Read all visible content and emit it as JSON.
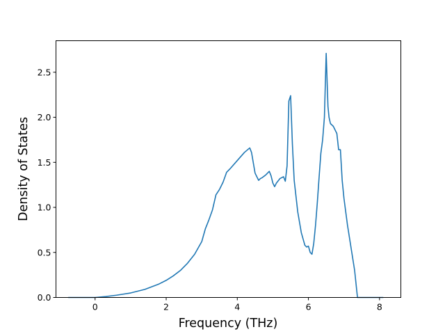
{
  "chart_data": {
    "type": "line",
    "xlabel": "Frequency (THz)",
    "ylabel": "Density of States",
    "xlim": [
      -1.1,
      8.6
    ],
    "ylim": [
      0.0,
      2.85
    ],
    "xticks": [
      0,
      2,
      4,
      6,
      8
    ],
    "xtick_labels": [
      "0",
      "2",
      "4",
      "6",
      "8"
    ],
    "yticks": [
      0.0,
      0.5,
      1.0,
      1.5,
      2.0,
      2.5
    ],
    "ytick_labels": [
      "0.0",
      "0.5",
      "1.0",
      "1.5",
      "2.0",
      "2.5"
    ],
    "grid": false,
    "colors": {
      "series": "#1f77b4"
    },
    "series": [
      {
        "x": [
          -0.75,
          0.0,
          0.3,
          0.6,
          1.0,
          1.4,
          1.8,
          2.0,
          2.2,
          2.4,
          2.6,
          2.8,
          2.9,
          3.0,
          3.1,
          3.2,
          3.3,
          3.4,
          3.45,
          3.5,
          3.6,
          3.7,
          3.8,
          4.0,
          4.2,
          4.35,
          4.4,
          4.5,
          4.6,
          4.65,
          4.7,
          4.8,
          4.9,
          4.95,
          5.0,
          5.05,
          5.1,
          5.2,
          5.3,
          5.35,
          5.4,
          5.45,
          5.5,
          5.55,
          5.6,
          5.7,
          5.8,
          5.9,
          5.95,
          6.0,
          6.05,
          6.1,
          6.15,
          6.2,
          6.25,
          6.3,
          6.35,
          6.4,
          6.45,
          6.5,
          6.55,
          6.58,
          6.62,
          6.7,
          6.8,
          6.85,
          6.9,
          6.95,
          7.0,
          7.05,
          7.1,
          7.2,
          7.3,
          7.38,
          7.45,
          8.1
        ],
        "y": [
          0.0,
          0.0,
          0.01,
          0.025,
          0.05,
          0.09,
          0.15,
          0.19,
          0.24,
          0.3,
          0.38,
          0.48,
          0.55,
          0.62,
          0.76,
          0.86,
          0.97,
          1.14,
          1.17,
          1.2,
          1.28,
          1.39,
          1.43,
          1.52,
          1.61,
          1.66,
          1.61,
          1.38,
          1.3,
          1.32,
          1.33,
          1.36,
          1.4,
          1.35,
          1.27,
          1.23,
          1.27,
          1.32,
          1.34,
          1.29,
          1.46,
          2.18,
          2.24,
          1.7,
          1.3,
          0.95,
          0.72,
          0.58,
          0.56,
          0.57,
          0.5,
          0.48,
          0.6,
          0.8,
          1.05,
          1.33,
          1.6,
          1.75,
          2.0,
          2.71,
          2.12,
          2.0,
          1.93,
          1.9,
          1.82,
          1.64,
          1.64,
          1.3,
          1.1,
          0.95,
          0.8,
          0.55,
          0.3,
          0.0,
          0.0,
          0.0
        ]
      }
    ]
  }
}
